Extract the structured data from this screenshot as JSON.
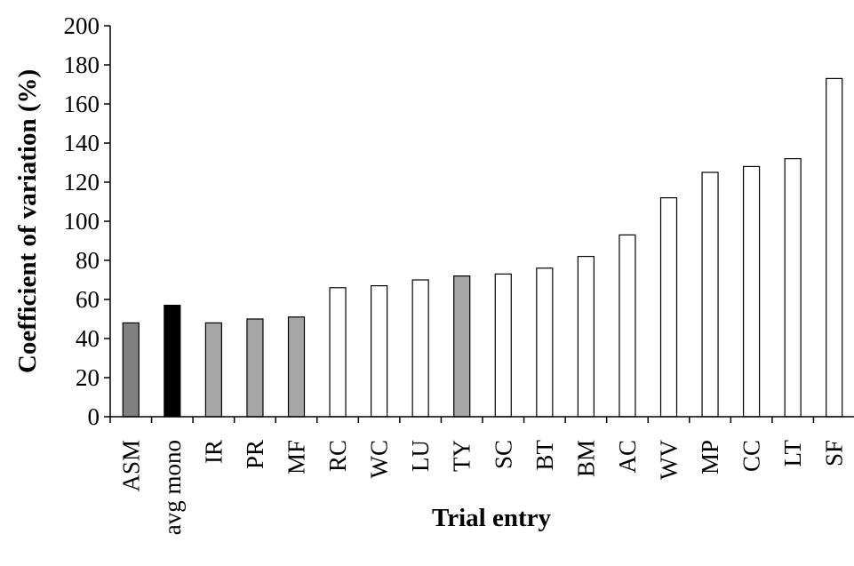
{
  "chart_data": {
    "type": "bar",
    "xlabel": "Trial entry",
    "ylabel": "Coefficient of variation (%)",
    "ylim": [
      0,
      200
    ],
    "yticks": [
      "0",
      "20",
      "40",
      "60",
      "80",
      "100",
      "120",
      "140",
      "160",
      "180",
      "200"
    ],
    "grid": false,
    "legend": "none",
    "categories": [
      "ASM",
      "avg mono",
      "IR",
      "PR",
      "MF",
      "RC",
      "WC",
      "LU",
      "TY",
      "SC",
      "BT",
      "BM",
      "AC",
      "WV",
      "MP",
      "CC",
      "LT",
      "SF"
    ],
    "values": [
      48,
      57,
      48,
      50,
      51,
      66,
      67,
      70,
      72,
      73,
      76,
      82,
      93,
      112,
      125,
      128,
      132,
      173
    ],
    "bar_colors": [
      "#808080",
      "#000000",
      "#a6a6a6",
      "#a6a6a6",
      "#a6a6a6",
      "#ffffff",
      "#ffffff",
      "#ffffff",
      "#a6a6a6",
      "#ffffff",
      "#ffffff",
      "#ffffff",
      "#ffffff",
      "#ffffff",
      "#ffffff",
      "#ffffff",
      "#ffffff",
      "#ffffff"
    ],
    "bar_edge_color": "#000000"
  }
}
